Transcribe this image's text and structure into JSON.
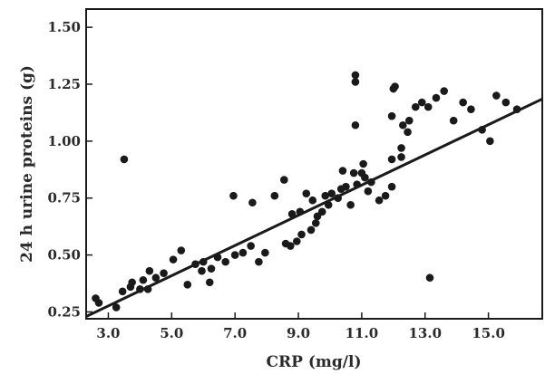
{
  "chart_data": {
    "type": "scatter",
    "title": "",
    "xlabel": "CRP (mg/l)",
    "ylabel": "24 h urine proteins (g)",
    "xlim": [
      2.3,
      16.7
    ],
    "ylim": [
      0.22,
      1.58
    ],
    "x_ticks": [
      3.0,
      5.0,
      7.0,
      9.0,
      11.0,
      13.0,
      15.0
    ],
    "x_tick_labels": [
      "3.0",
      "5.0",
      "7.0",
      "9.0",
      "11.0",
      "13.0",
      "15.0"
    ],
    "y_ticks": [
      0.25,
      0.5,
      0.75,
      1.0,
      1.25,
      1.5
    ],
    "y_tick_labels": [
      "0.25",
      "0.50",
      "0.75",
      "1.00",
      "1.25",
      "1.50"
    ],
    "grid": false,
    "legend": "none",
    "marker_color": "#1a1a1a",
    "line_color": "#1a1a1a",
    "trendline": {
      "x": [
        2.3,
        16.7
      ],
      "y": [
        0.23,
        1.185
      ]
    },
    "points": [
      [
        2.6,
        0.31
      ],
      [
        2.7,
        0.29
      ],
      [
        3.25,
        0.27
      ],
      [
        3.45,
        0.34
      ],
      [
        3.5,
        0.92
      ],
      [
        3.7,
        0.36
      ],
      [
        3.75,
        0.38
      ],
      [
        4.0,
        0.35
      ],
      [
        4.1,
        0.39
      ],
      [
        4.25,
        0.35
      ],
      [
        4.3,
        0.43
      ],
      [
        4.5,
        0.4
      ],
      [
        4.75,
        0.42
      ],
      [
        5.05,
        0.48
      ],
      [
        5.3,
        0.52
      ],
      [
        5.5,
        0.37
      ],
      [
        5.75,
        0.46
      ],
      [
        5.95,
        0.43
      ],
      [
        6.0,
        0.47
      ],
      [
        6.2,
        0.38
      ],
      [
        6.25,
        0.44
      ],
      [
        6.45,
        0.49
      ],
      [
        6.7,
        0.47
      ],
      [
        6.95,
        0.76
      ],
      [
        7.0,
        0.5
      ],
      [
        7.25,
        0.51
      ],
      [
        7.5,
        0.54
      ],
      [
        7.55,
        0.73
      ],
      [
        7.75,
        0.47
      ],
      [
        7.95,
        0.51
      ],
      [
        8.25,
        0.76
      ],
      [
        8.55,
        0.83
      ],
      [
        8.6,
        0.55
      ],
      [
        8.75,
        0.54
      ],
      [
        8.8,
        0.68
      ],
      [
        8.95,
        0.56
      ],
      [
        9.05,
        0.69
      ],
      [
        9.1,
        0.59
      ],
      [
        9.25,
        0.77
      ],
      [
        9.4,
        0.61
      ],
      [
        9.45,
        0.74
      ],
      [
        9.55,
        0.64
      ],
      [
        9.6,
        0.67
      ],
      [
        9.75,
        0.69
      ],
      [
        9.85,
        0.76
      ],
      [
        9.95,
        0.72
      ],
      [
        10.05,
        0.77
      ],
      [
        10.25,
        0.75
      ],
      [
        10.35,
        0.79
      ],
      [
        10.4,
        0.87
      ],
      [
        10.5,
        0.8
      ],
      [
        10.65,
        0.72
      ],
      [
        10.75,
        0.86
      ],
      [
        10.8,
        1.07
      ],
      [
        10.8,
        1.26
      ],
      [
        10.8,
        1.29
      ],
      [
        10.85,
        0.81
      ],
      [
        11.0,
        0.86
      ],
      [
        11.05,
        0.9
      ],
      [
        11.1,
        0.84
      ],
      [
        11.2,
        0.78
      ],
      [
        11.3,
        0.82
      ],
      [
        11.55,
        0.74
      ],
      [
        11.75,
        0.76
      ],
      [
        11.95,
        0.8
      ],
      [
        11.95,
        0.92
      ],
      [
        11.95,
        1.11
      ],
      [
        12.0,
        1.23
      ],
      [
        12.05,
        1.24
      ],
      [
        12.25,
        0.93
      ],
      [
        12.25,
        0.97
      ],
      [
        12.3,
        1.07
      ],
      [
        12.45,
        1.04
      ],
      [
        12.5,
        1.09
      ],
      [
        12.7,
        1.15
      ],
      [
        12.9,
        1.17
      ],
      [
        13.1,
        1.15
      ],
      [
        13.15,
        0.4
      ],
      [
        13.35,
        1.19
      ],
      [
        13.6,
        1.22
      ],
      [
        13.9,
        1.09
      ],
      [
        14.2,
        1.17
      ],
      [
        14.45,
        1.14
      ],
      [
        14.8,
        1.05
      ],
      [
        15.05,
        1.0
      ],
      [
        15.25,
        1.2
      ],
      [
        15.55,
        1.17
      ],
      [
        15.9,
        1.14
      ]
    ]
  }
}
